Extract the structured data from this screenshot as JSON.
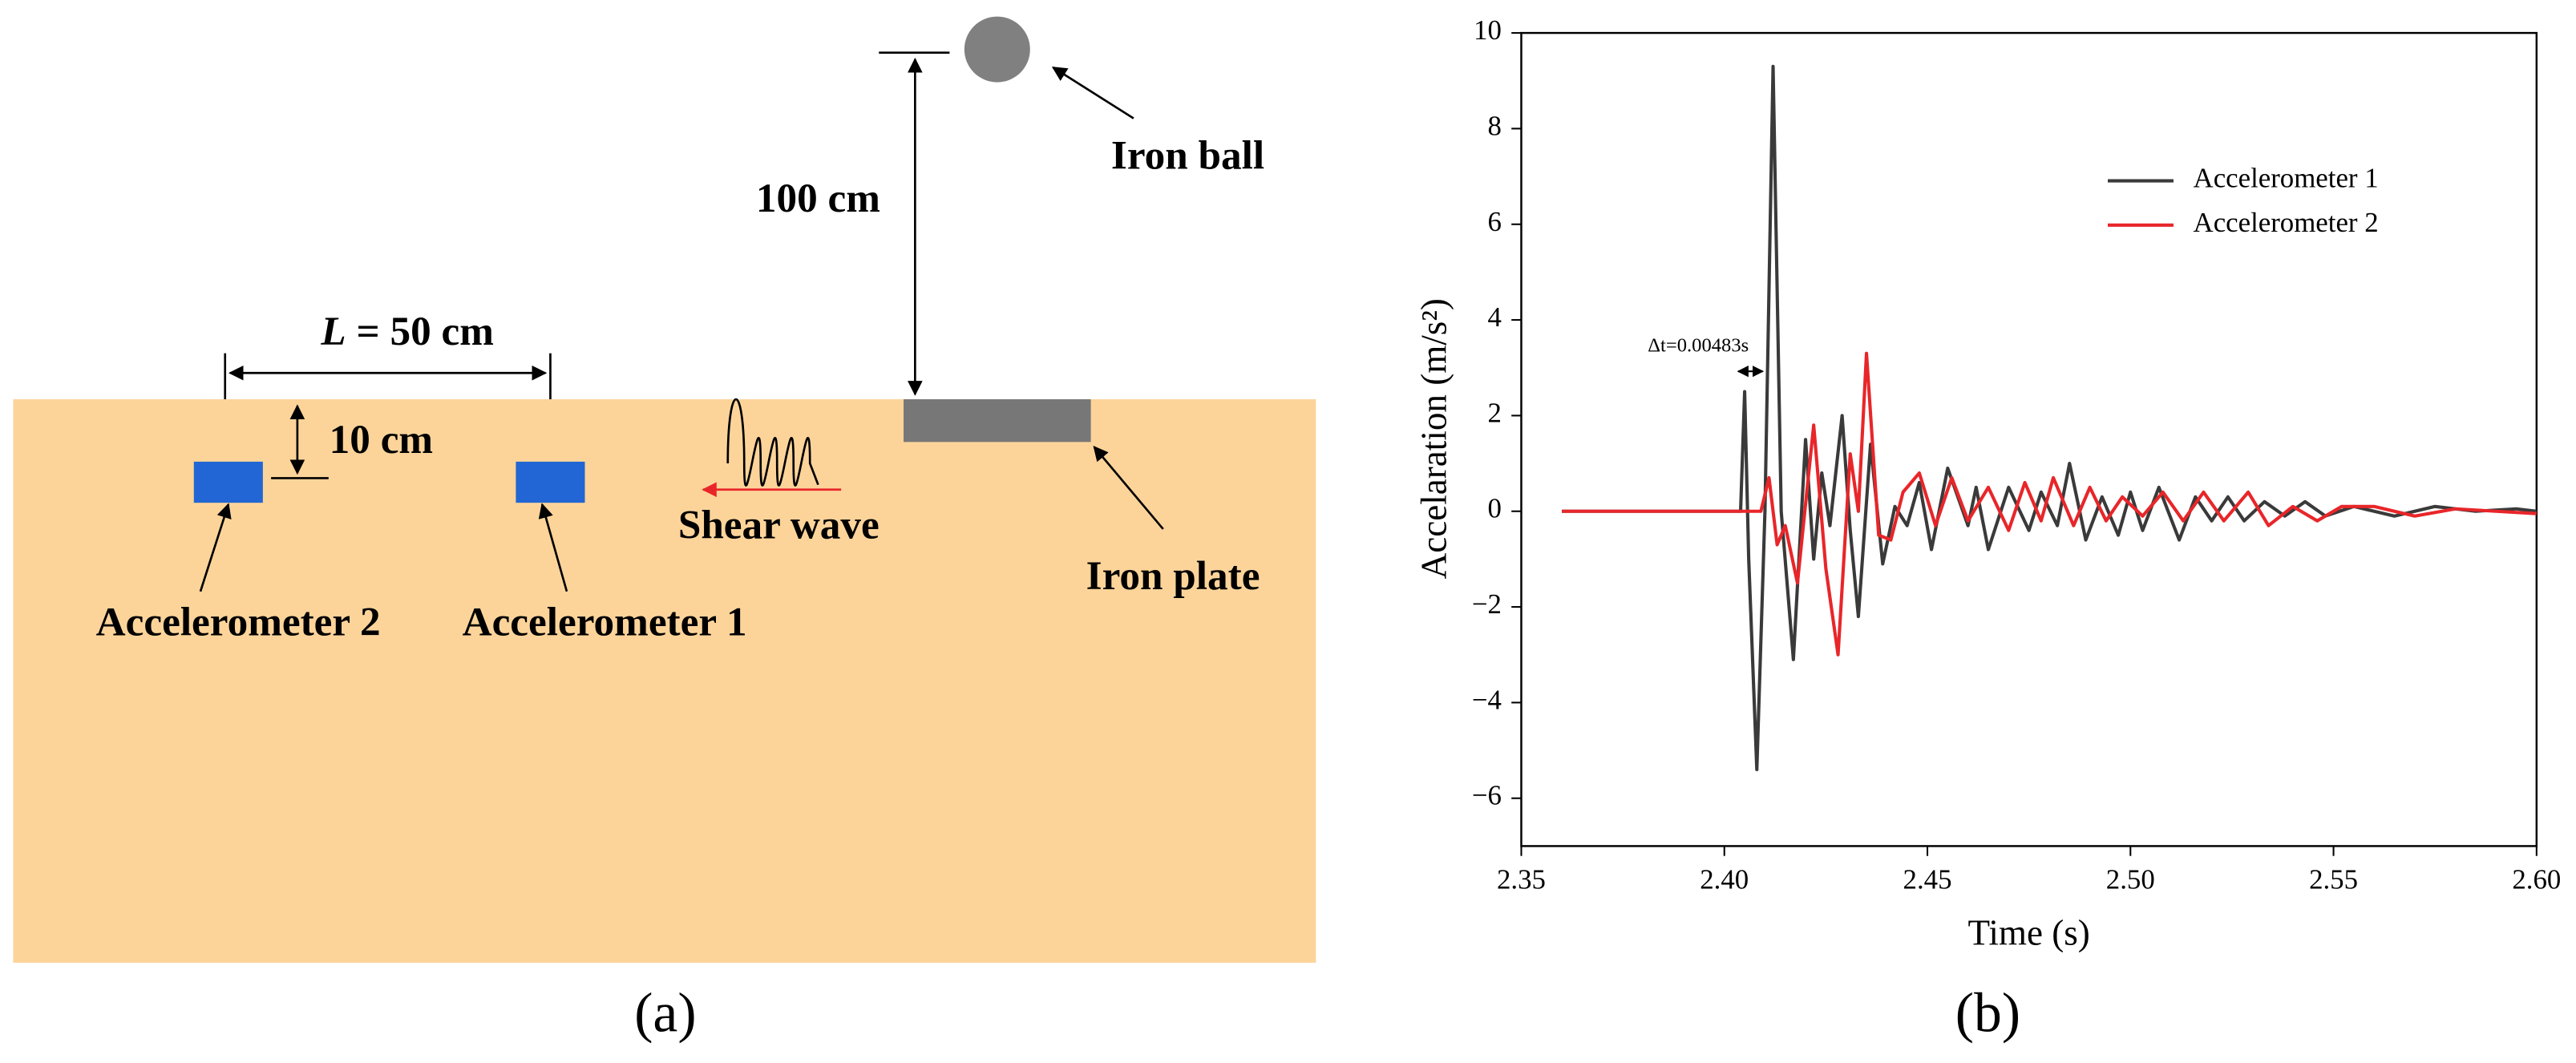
{
  "diagram": {
    "iron_ball": "Iron ball",
    "height": "100 cm",
    "spacing": {
      "symbol": "L",
      "text": "= 50 cm"
    },
    "depth": "10 cm",
    "shear_wave": "Shear wave",
    "iron_plate": "Iron plate",
    "accelerometer_2": "Accelerometer 2",
    "accelerometer_1": "Accelerometer 1",
    "panel_label": "(a)"
  },
  "chart_data": {
    "type": "line",
    "panel_label": "(b)",
    "xlabel": "Time (s)",
    "ylabel": "Accelaration (m/s²)",
    "annotation": {
      "symbol": "Δt",
      "text": "=0.00483s"
    },
    "xlim": [
      2.35,
      2.6
    ],
    "ylim": [
      -7,
      10
    ],
    "xticks": [
      2.35,
      {
        "value": 2.4,
        "label": "2.40"
      },
      2.45,
      {
        "value": 2.5,
        "label": "2.50"
      },
      2.55,
      {
        "value": 2.6,
        "label": "2.60"
      }
    ],
    "yticks": [
      {
        "value": -6,
        "label": "−6"
      },
      {
        "value": -4,
        "label": "−4"
      },
      {
        "value": -2,
        "label": "−2"
      },
      0,
      2,
      4,
      6,
      8,
      10
    ],
    "legend": "upper right",
    "series": [
      {
        "name": "Accelerometer 1",
        "color": "#3a3a3a",
        "x": [
          2.36,
          2.404,
          2.405,
          2.406,
          2.408,
          2.41,
          2.412,
          2.414,
          2.417,
          2.42,
          2.422,
          2.424,
          2.426,
          2.429,
          2.431,
          2.433,
          2.436,
          2.439,
          2.442,
          2.445,
          2.448,
          2.451,
          2.455,
          2.46,
          2.462,
          2.465,
          2.47,
          2.475,
          2.478,
          2.482,
          2.485,
          2.489,
          2.493,
          2.497,
          2.5,
          2.503,
          2.507,
          2.512,
          2.516,
          2.52,
          2.524,
          2.528,
          2.533,
          2.538,
          2.543,
          2.548,
          2.555,
          2.565,
          2.575,
          2.585,
          2.595,
          2.6
        ],
        "values": [
          0,
          0,
          2.5,
          -1,
          -5.4,
          0,
          9.3,
          0,
          -3.1,
          1.5,
          -1,
          0.8,
          -0.3,
          2.0,
          -0.4,
          -2.2,
          1.4,
          -1.1,
          0.1,
          -0.3,
          0.6,
          -0.8,
          0.9,
          -0.3,
          0.5,
          -0.8,
          0.5,
          -0.4,
          0.4,
          -0.3,
          1.0,
          -0.6,
          0.3,
          -0.5,
          0.4,
          -0.4,
          0.5,
          -0.6,
          0.3,
          -0.2,
          0.3,
          -0.2,
          0.2,
          -0.1,
          0.2,
          -0.1,
          0.1,
          -0.1,
          0.1,
          0,
          0.05,
          0
        ]
      },
      {
        "name": "Accelerometer 2",
        "color": "#e8262a",
        "x": [
          2.36,
          2.409,
          2.411,
          2.413,
          2.415,
          2.418,
          2.422,
          2.425,
          2.428,
          2.431,
          2.433,
          2.435,
          2.438,
          2.441,
          2.444,
          2.448,
          2.452,
          2.456,
          2.46,
          2.465,
          2.47,
          2.474,
          2.478,
          2.481,
          2.486,
          2.49,
          2.494,
          2.498,
          2.503,
          2.508,
          2.513,
          2.518,
          2.523,
          2.529,
          2.534,
          2.54,
          2.546,
          2.552,
          2.56,
          2.57,
          2.58,
          2.59,
          2.6
        ],
        "values": [
          0,
          0,
          0.7,
          -0.7,
          -0.3,
          -1.5,
          1.8,
          -1.2,
          -3.0,
          1.2,
          0,
          3.3,
          -0.5,
          -0.6,
          0.4,
          0.8,
          -0.3,
          0.7,
          -0.2,
          0.5,
          -0.4,
          0.6,
          -0.2,
          0.7,
          -0.3,
          0.5,
          -0.2,
          0.3,
          -0.1,
          0.4,
          -0.2,
          0.4,
          -0.2,
          0.4,
          -0.3,
          0.1,
          -0.2,
          0.1,
          0.1,
          -0.1,
          0.05,
          0,
          -0.05
        ]
      }
    ]
  }
}
